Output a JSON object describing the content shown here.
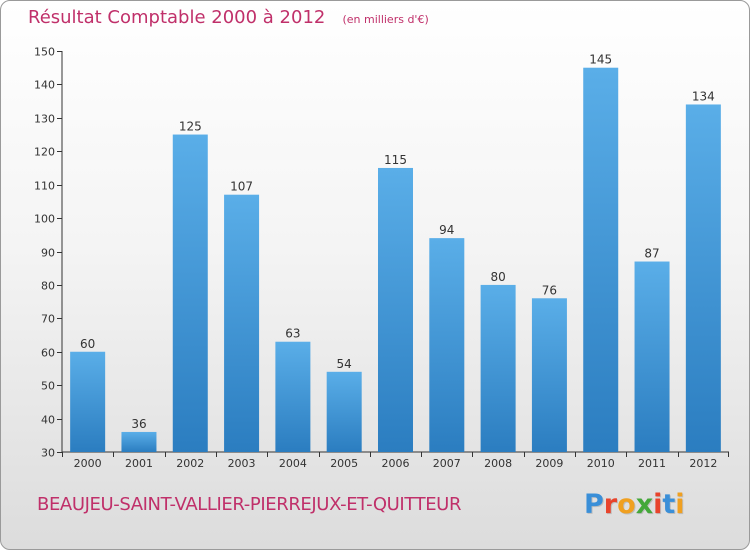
{
  "colors": {
    "title": "#c0306a",
    "bar_light": "#5aaee8",
    "bar_dark": "#2b7dc0",
    "axis": "#333333"
  },
  "chart_data": {
    "type": "bar",
    "title": "Résultat Comptable 2000 à 2012",
    "unit_note": "(en milliers d'€)",
    "categories": [
      "2000",
      "2001",
      "2002",
      "2003",
      "2004",
      "2005",
      "2006",
      "2007",
      "2008",
      "2009",
      "2010",
      "2011",
      "2012"
    ],
    "values": [
      60,
      36,
      125,
      107,
      63,
      54,
      115,
      94,
      80,
      76,
      145,
      87,
      134
    ],
    "ylim": [
      30,
      150
    ],
    "yticks": [
      30,
      40,
      50,
      60,
      70,
      80,
      90,
      100,
      110,
      120,
      130,
      140,
      150
    ],
    "grid": false,
    "xlabel": "",
    "ylabel": ""
  },
  "footer": {
    "place_name": "BEAUJEU-SAINT-VALLIER-PIERREJUX-ET-QUITTEUR",
    "brand": "Proxiti",
    "brand_letter_colors": [
      "#3a8fd8",
      "#e8442c",
      "#f0a020",
      "#44a83a",
      "#e8442c",
      "#3a8fd8",
      "#f0a020"
    ]
  }
}
